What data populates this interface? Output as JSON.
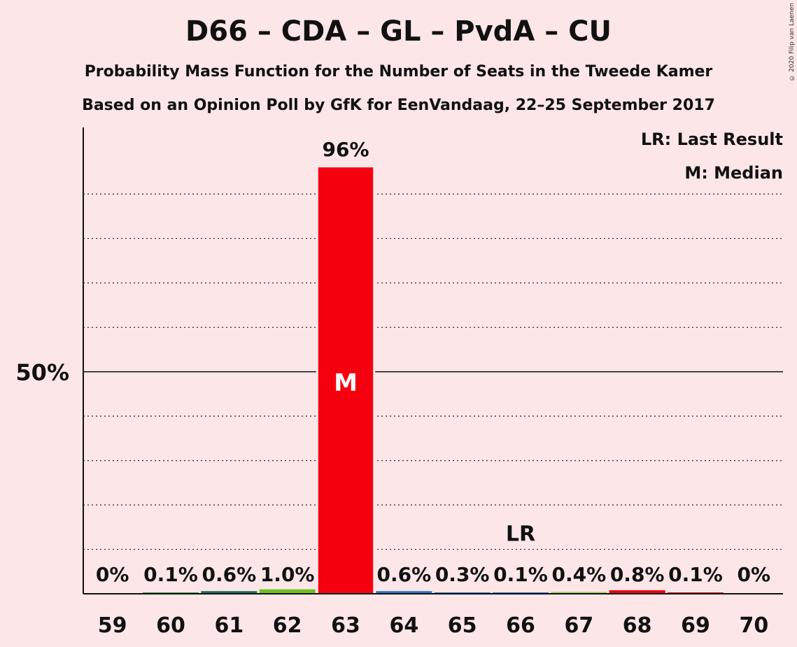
{
  "chart_data": {
    "type": "bar",
    "title": "D66 – CDA – GL – PvdA – CU",
    "subtitle": "Probability Mass Function for the Number of Seats in the Tweede Kamer",
    "subtitle2": "Based on an Opinion Poll by GfK for EenVandaag, 22–25 September 2017",
    "copyright": "© 2020 Filip van Laenen",
    "legend": [
      "LR: Last Result",
      "M: Median"
    ],
    "legend_position": "top-right",
    "categories": [
      "59",
      "60",
      "61",
      "62",
      "63",
      "64",
      "65",
      "66",
      "67",
      "68",
      "69",
      "70"
    ],
    "values": [
      0,
      0.1,
      0.6,
      1.0,
      96,
      0.6,
      0.3,
      0.1,
      0.4,
      0.8,
      0.1,
      0
    ],
    "value_labels": [
      "0%",
      "0.1%",
      "0.6%",
      "1.0%",
      "96%",
      "0.6%",
      "0.3%",
      "0.1%",
      "0.4%",
      "0.8%",
      "0.1%",
      "0%"
    ],
    "bar_colors": [
      "#2ca02c",
      "#2ca02c",
      "#1a6e5a",
      "#6fbf1f",
      "#f5000f",
      "#2377c8",
      "#2377c8",
      "#2377c8",
      "#9acd32",
      "#e8000f",
      "#e8000f",
      "#e8000f"
    ],
    "ylim": [
      0,
      105
    ],
    "ytick_labels": [
      {
        "value": 50,
        "label": "50%"
      }
    ],
    "minor_gridlines": [
      10,
      20,
      30,
      40,
      60,
      70,
      80,
      90
    ],
    "grid": true,
    "median_category": "63",
    "median_marker": "M",
    "last_result_category": "66",
    "last_result_marker": "LR",
    "last_result_value": 10
  }
}
